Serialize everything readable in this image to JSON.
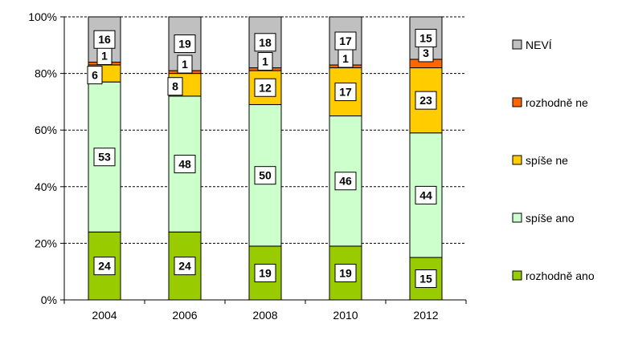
{
  "chart_data": {
    "type": "bar",
    "stacked": true,
    "percent_stacked": true,
    "categories": [
      "2004",
      "2006",
      "2008",
      "2010",
      "2012"
    ],
    "series": [
      {
        "name": "rozhodně ano",
        "color": "#99cc00",
        "values": [
          24,
          24,
          19,
          19,
          15
        ]
      },
      {
        "name": "spíše ano",
        "color": "#ccffcc",
        "values": [
          53,
          48,
          50,
          46,
          44
        ]
      },
      {
        "name": "spíše ne",
        "color": "#ffcc00",
        "values": [
          6,
          8,
          12,
          17,
          23
        ]
      },
      {
        "name": "rozhodně ne",
        "color": "#ff6600",
        "values": [
          1,
          1,
          1,
          1,
          3
        ]
      },
      {
        "name": "NEVÍ",
        "color": "#c0c0c0",
        "values": [
          16,
          19,
          18,
          17,
          15
        ]
      }
    ],
    "y_ticks": [
      "0%",
      "20%",
      "40%",
      "60%",
      "80%",
      "100%"
    ],
    "ylim": [
      0,
      100
    ],
    "grid": "horizontal dashed",
    "legend_position": "right",
    "legend_order": [
      "NEVÍ",
      "rozhodně ne",
      "spíše ne",
      "spíše ano",
      "rozhodně ano"
    ]
  }
}
